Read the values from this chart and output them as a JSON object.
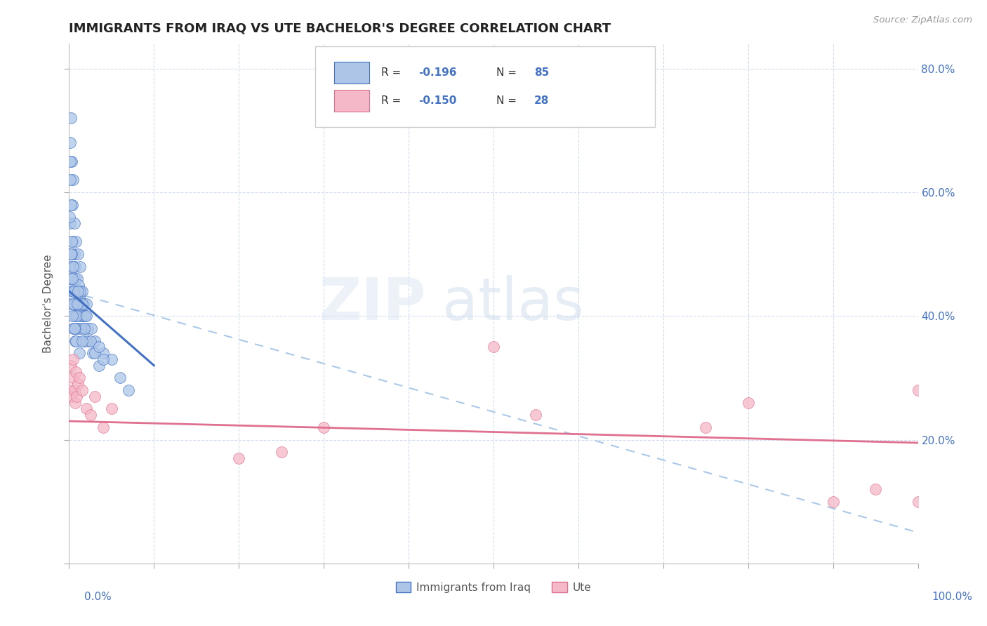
{
  "title": "IMMIGRANTS FROM IRAQ VS UTE BACHELOR'S DEGREE CORRELATION CHART",
  "source": "Source: ZipAtlas.com",
  "ylabel": "Bachelor's Degree",
  "legend_label1": "Immigrants from Iraq",
  "legend_label2": "Ute",
  "r1": -0.196,
  "n1": 85,
  "r2": -0.15,
  "n2": 28,
  "color_iraq": "#adc6e8",
  "color_ute": "#f4b8c8",
  "color_iraq_line": "#4472c4",
  "color_ute_line": "#e07090",
  "color_dashed": "#aac8e8",
  "watermark_zip": "ZIP",
  "watermark_atlas": "atlas",
  "iraq_x": [
    0.05,
    0.1,
    0.15,
    0.2,
    0.25,
    0.3,
    0.35,
    0.4,
    0.45,
    0.5,
    0.55,
    0.6,
    0.65,
    0.7,
    0.75,
    0.8,
    0.85,
    0.9,
    0.95,
    1.0,
    1.1,
    1.2,
    1.3,
    1.4,
    1.5,
    1.6,
    1.7,
    1.8,
    1.9,
    2.0,
    2.2,
    2.4,
    2.6,
    2.8,
    3.0,
    3.5,
    4.0,
    5.0,
    6.0,
    7.0,
    0.1,
    0.2,
    0.3,
    0.4,
    0.5,
    0.6,
    0.7,
    0.8,
    0.9,
    1.0,
    1.1,
    1.2,
    1.3,
    1.4,
    1.5,
    1.6,
    1.7,
    1.8,
    1.9,
    2.0,
    0.05,
    0.15,
    0.25,
    0.35,
    0.45,
    0.55,
    0.65,
    0.75,
    0.85,
    0.95,
    2.5,
    3.0,
    3.5,
    4.0,
    2.0,
    1.0,
    0.5,
    0.3,
    0.2,
    0.1,
    0.4,
    0.6,
    0.8,
    1.2,
    1.5
  ],
  "iraq_y": [
    50,
    68,
    55,
    72,
    48,
    65,
    52,
    58,
    45,
    62,
    44,
    55,
    50,
    48,
    46,
    52,
    44,
    42,
    46,
    50,
    45,
    43,
    48,
    42,
    44,
    40,
    42,
    38,
    40,
    42,
    38,
    36,
    38,
    34,
    36,
    32,
    34,
    33,
    30,
    28,
    42,
    46,
    50,
    44,
    38,
    42,
    36,
    40,
    44,
    38,
    42,
    40,
    44,
    38,
    42,
    40,
    36,
    38,
    40,
    36,
    56,
    62,
    50,
    46,
    42,
    44,
    40,
    38,
    40,
    42,
    36,
    34,
    35,
    33,
    40,
    44,
    48,
    52,
    58,
    65,
    40,
    38,
    36,
    34,
    36
  ],
  "ute_x": [
    0.1,
    0.2,
    0.3,
    0.4,
    0.5,
    0.6,
    0.7,
    0.8,
    0.9,
    1.0,
    1.2,
    1.5,
    2.0,
    2.5,
    3.0,
    4.0,
    5.0,
    20.0,
    25.0,
    30.0,
    50.0,
    55.0,
    75.0,
    80.0,
    90.0,
    95.0,
    100.0,
    100.0
  ],
  "ute_y": [
    28,
    32,
    27,
    30,
    33,
    28,
    26,
    31,
    27,
    29,
    30,
    28,
    25,
    24,
    27,
    22,
    25,
    17,
    18,
    22,
    35,
    24,
    22,
    26,
    10,
    12,
    28,
    10
  ],
  "ylim_min": 0,
  "ylim_max": 84,
  "xlim_min": 0,
  "xlim_max": 100,
  "ytick_values": [
    0,
    20,
    40,
    60,
    80
  ],
  "right_ytick_values": [
    20,
    40,
    60,
    80
  ],
  "right_ytick_labels": [
    "20.0%",
    "40.0%",
    "60.0%",
    "80.0%"
  ],
  "iraq_line_x_end": 10.0,
  "iraq_line_start_y": 44.0,
  "iraq_line_slope": -1.2,
  "ute_line_start_y": 23.0,
  "ute_line_end_y": 19.5,
  "dashed_start_y": 44.0,
  "dashed_end_y": 5.0
}
